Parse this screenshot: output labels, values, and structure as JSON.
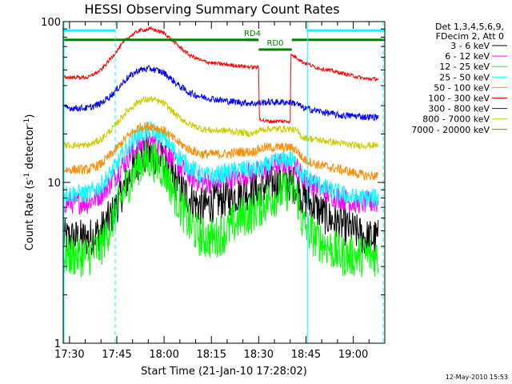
{
  "chart_data": {
    "type": "line",
    "title": "HESSI Observing Summary Count Rates",
    "xlabel": "Start Time (21-Jan-10 17:28:02)",
    "ylabel_prefix": "Count Rate (s",
    "ylabel_sup": "-1",
    "ylabel_mid": " detector",
    "ylabel_suffix": ")",
    "y_scale": "log",
    "ylim": [
      1,
      100
    ],
    "y_ticks": [
      "1",
      "10",
      "100"
    ],
    "x_range_minutes": [
      0,
      102
    ],
    "x_ticks": [
      {
        "label": "17:30",
        "minute": 2
      },
      {
        "label": "17:45",
        "minute": 17
      },
      {
        "label": "18:00",
        "minute": 32
      },
      {
        "label": "18:15",
        "minute": 47
      },
      {
        "label": "18:30",
        "minute": 62
      },
      {
        "label": "18:45",
        "minute": 77
      },
      {
        "label": "19:00",
        "minute": 92
      }
    ],
    "legend_header": [
      "Det 1,3,4,5,6,9,",
      "FDecim 2, Att 0"
    ],
    "series": [
      {
        "name": "3 - 6 keV",
        "color": "#000000",
        "x": [
          0,
          8,
          12,
          16,
          20,
          24,
          28,
          32,
          36,
          40,
          44,
          48,
          52,
          56,
          60,
          62,
          64,
          68,
          72,
          74,
          76,
          80,
          84,
          88,
          92,
          96,
          100
        ],
        "y": [
          4.5,
          4.5,
          5,
          6.5,
          10,
          14,
          15,
          13.5,
          10,
          8,
          7,
          7.5,
          8,
          8.5,
          9,
          9,
          9.5,
          10,
          10,
          9.5,
          8,
          7,
          6,
          5.5,
          5,
          4.5,
          4.5
        ],
        "noise": 0.2
      },
      {
        "name": "6 - 12 keV",
        "color": "#ff00ff",
        "x": [
          0,
          8,
          12,
          16,
          20,
          24,
          28,
          32,
          36,
          40,
          44,
          48,
          52,
          56,
          60,
          62,
          64,
          68,
          72,
          74,
          76,
          80,
          84,
          88,
          92,
          96,
          100
        ],
        "y": [
          7.5,
          7.5,
          8.5,
          10.5,
          14,
          17,
          18,
          16,
          13,
          11,
          10,
          10,
          10.5,
          11,
          11.5,
          11.5,
          12,
          13,
          13,
          12.5,
          10.5,
          9.5,
          8.5,
          8,
          7.5,
          7.5,
          7.5
        ],
        "noise": 0.12
      },
      {
        "name": "12 - 25 keV",
        "color": "#00ff00",
        "x": [
          0,
          8,
          12,
          16,
          20,
          24,
          28,
          32,
          36,
          40,
          44,
          48,
          52,
          56,
          60,
          62,
          64,
          68,
          72,
          74,
          76,
          80,
          84,
          88,
          92,
          96,
          100
        ],
        "y": [
          3.5,
          3.5,
          4,
          6,
          9.5,
          13,
          14,
          12,
          8,
          5.5,
          4.5,
          4.5,
          5,
          6,
          6.5,
          7,
          7.5,
          8.5,
          9,
          8.5,
          5.5,
          4.5,
          4,
          3.5,
          3.5,
          3.5,
          3.5
        ],
        "noise": 0.22
      },
      {
        "name": "25 - 50 keV",
        "color": "#00ffff",
        "x": [
          0,
          8,
          12,
          16,
          20,
          24,
          28,
          32,
          36,
          40,
          44,
          48,
          52,
          56,
          60,
          62,
          64,
          68,
          72,
          74,
          76,
          80,
          84,
          88,
          92,
          96,
          100
        ],
        "y": [
          8.5,
          8.5,
          9.5,
          12,
          16,
          20,
          21,
          19,
          15,
          12.5,
          11,
          11,
          11.5,
          12,
          12,
          12,
          12.5,
          13.5,
          14,
          13,
          11,
          10,
          9,
          8.5,
          8,
          8,
          8
        ],
        "noise": 0.1
      },
      {
        "name": "50 - 100 keV",
        "color": "#ff8c00",
        "x": [
          0,
          8,
          12,
          16,
          20,
          24,
          28,
          32,
          36,
          40,
          44,
          48,
          52,
          56,
          60,
          62,
          64,
          68,
          72,
          74,
          76,
          80,
          84,
          88,
          92,
          96,
          100
        ],
        "y": [
          12,
          12,
          13,
          15.5,
          19,
          22,
          22.5,
          21,
          18,
          16,
          15,
          15,
          15,
          15.5,
          15.5,
          16,
          16.5,
          16.5,
          16.5,
          16,
          14,
          13,
          12.5,
          12,
          11.5,
          11,
          11
        ],
        "noise": 0.05
      },
      {
        "name": "100 - 300 keV",
        "color": "#ff0000",
        "x": [
          0,
          8,
          12,
          16,
          20,
          24,
          28,
          32,
          36,
          40,
          44,
          48,
          52,
          56,
          60,
          62,
          62.2,
          64,
          68,
          72,
          72.2,
          74,
          76,
          80,
          84,
          88,
          92,
          96,
          100
        ],
        "y": [
          45,
          45,
          50,
          62,
          78,
          88,
          90,
          85,
          72,
          62,
          57,
          55,
          54,
          53,
          52,
          52,
          25,
          24,
          24,
          24,
          62,
          60,
          56,
          52,
          50,
          48,
          46,
          44,
          44
        ],
        "noise": 0.02
      },
      {
        "name": "300 - 800 keV",
        "color": "#0000ff",
        "x": [
          0,
          8,
          12,
          16,
          20,
          24,
          28,
          32,
          36,
          40,
          44,
          48,
          52,
          56,
          60,
          62,
          64,
          68,
          72,
          74,
          76,
          80,
          84,
          88,
          92,
          96,
          100
        ],
        "y": [
          29,
          29,
          31,
          36,
          44,
          50,
          51,
          48,
          41,
          36,
          34,
          33,
          32,
          31.5,
          31,
          31,
          31.5,
          31.5,
          31.5,
          31,
          29,
          28,
          27,
          26,
          26,
          25.5,
          25.5
        ],
        "noise": 0.035
      },
      {
        "name": "800 - 7000 keV",
        "color": "#cccc00",
        "x": [
          0,
          8,
          12,
          16,
          20,
          24,
          28,
          32,
          36,
          40,
          44,
          48,
          52,
          56,
          60,
          62,
          64,
          68,
          72,
          74,
          76,
          80,
          84,
          88,
          92,
          96,
          100
        ],
        "y": [
          17,
          17,
          18.5,
          22,
          27.5,
          32,
          33,
          31,
          26,
          23,
          21.5,
          21,
          21,
          20.5,
          20,
          21,
          21.5,
          21.5,
          21.5,
          21,
          19,
          18.5,
          18,
          17.5,
          17,
          17,
          17
        ],
        "noise": 0.035
      },
      {
        "name": "7000 - 20000 keV",
        "color": "#808000",
        "x": [],
        "y": [],
        "noise": 0
      }
    ],
    "attenuator_segments": [
      {
        "label": "",
        "start": 0,
        "end": 16.5
      },
      {
        "label": "",
        "start": 77.2,
        "end": 102
      }
    ],
    "state_bars": [
      {
        "label": "",
        "start": 0,
        "end": 61.5,
        "level": 77
      },
      {
        "label": "RD4",
        "start": 58,
        "end": 62,
        "level": 77
      },
      {
        "label": "RD0",
        "start": 62,
        "end": 72.5,
        "level": 67
      },
      {
        "label": "",
        "start": 72.5,
        "end": 102,
        "level": 77
      }
    ],
    "vlines_solid": [
      0,
      77.2
    ],
    "vlines_dashed": [
      16.5,
      101.5
    ],
    "grid": false,
    "legend_position": "right"
  },
  "footer": {
    "timestamp": "12-May-2010 15:53"
  }
}
